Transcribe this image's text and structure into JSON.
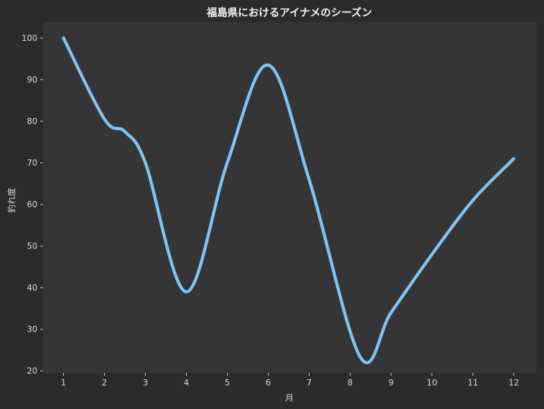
{
  "chart_data": {
    "type": "line",
    "title": "福島県におけるアイナメのシーズン",
    "xlabel": "月",
    "ylabel": "釣れ度",
    "x_ticks": [
      "1",
      "2",
      "3",
      "4",
      "5",
      "6",
      "7",
      "8",
      "9",
      "10",
      "11",
      "12"
    ],
    "y_ticks": [
      "20",
      "30",
      "40",
      "50",
      "60",
      "70",
      "80",
      "90",
      "100"
    ],
    "xlim": [
      0.5,
      12.55
    ],
    "ylim": [
      19.5,
      103.8
    ],
    "grid": false,
    "legend": "none",
    "smooth": true,
    "series": [
      {
        "color": "#7dc4f5",
        "x": [
          1,
          2,
          2.5,
          3,
          4,
          5,
          6,
          7,
          8.25,
          9,
          10,
          11,
          12
        ],
        "values": [
          100,
          80.5,
          77.5,
          70,
          39,
          70,
          93.5,
          66,
          23.3,
          34,
          48,
          61,
          71
        ]
      }
    ]
  },
  "colors": {
    "background": "#2b2b2b",
    "plot_background": "#353535",
    "line": "#7dc4f5",
    "text": "#d9d9d9",
    "title": "#f2f2f2"
  }
}
